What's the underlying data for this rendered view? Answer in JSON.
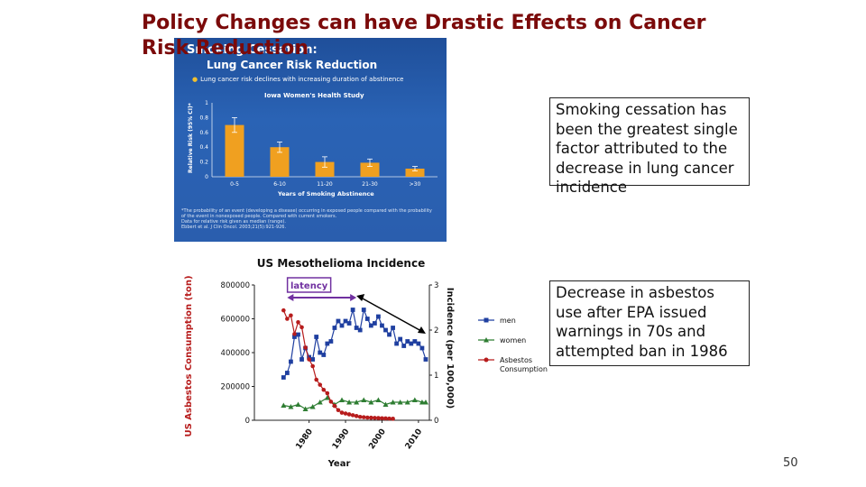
{
  "slide": {
    "title": "Policy Changes can have Drastic Effects on Cancer Risk Reduction",
    "callout1": "Smoking cessation has been the greatest single factor attributed to the decrease in lung cancer incidence",
    "callout2": "Decrease in asbestos use after EPA issued warnings in 70s and attempted ban in 1986",
    "page_number": "50"
  },
  "figure1": {
    "heading1": "Smoking Cessation:",
    "heading2": "Lung Cancer Risk Reduction",
    "bullet": "Lung cancer risk declines with increasing duration of abstinence",
    "bg_color": "#2a5eae",
    "bar_color": "#f0a020",
    "footnote": [
      "*The probability of an event (developing a disease) occurring in exposed people compared with the probability",
      "of the event in nonexposed people. Compared with current smokers.",
      "Data for relative risk given as median (range).",
      "Ebbert et al. J Clin Oncol. 2003;21(5):921-926."
    ],
    "chart_data": {
      "type": "bar",
      "title": "Iowa Women's Health Study",
      "xlabel": "Years of Smoking Abstinence",
      "ylabel": "Relative Risk (95% CI)*",
      "categories": [
        "0-5",
        "6-10",
        "11-20",
        "21-30",
        ">30"
      ],
      "values": [
        0.7,
        0.4,
        0.2,
        0.19,
        0.11
      ],
      "errors": [
        0.1,
        0.07,
        0.07,
        0.05,
        0.03
      ],
      "ylim": [
        0,
        1
      ],
      "yticks": [
        "0",
        "0.2",
        "0.4",
        "0.6",
        "0.8",
        "1"
      ]
    }
  },
  "figure2": {
    "latency_label": "latency",
    "latency_color": "#7030a0",
    "chart_data": {
      "type": "line",
      "title": "US Mesothelioma Incidence",
      "xlabel": "Year",
      "ylabel_left": "US Asbestos Consumption (ton)",
      "ylabel_right": "Incidence (per 100,000)",
      "xlim": [
        1965,
        2013
      ],
      "xticks": [
        "1980",
        "1990",
        "2000",
        "2010"
      ],
      "ylim_left": [
        0,
        800000
      ],
      "yticks_left": [
        "0",
        "200000",
        "400000",
        "600000",
        "800000"
      ],
      "ylim_right": [
        0,
        3
      ],
      "yticks_right": [
        "0",
        "1",
        "2",
        "3"
      ],
      "series": [
        {
          "name": "men",
          "axis": "right",
          "color": "#1f3fa0",
          "marker": "square",
          "x": [
            1973,
            1974,
            1975,
            1976,
            1977,
            1978,
            1979,
            1980,
            1981,
            1982,
            1983,
            1984,
            1985,
            1986,
            1987,
            1988,
            1989,
            1990,
            1991,
            1992,
            1993,
            1994,
            1995,
            1996,
            1997,
            1998,
            1999,
            2000,
            2001,
            2002,
            2003,
            2004,
            2005,
            2006,
            2007,
            2008,
            2009,
            2010,
            2011,
            2012
          ],
          "y": [
            0.95,
            1.05,
            1.3,
            1.85,
            1.9,
            1.35,
            1.6,
            1.4,
            1.35,
            1.85,
            1.5,
            1.45,
            1.7,
            1.75,
            2.05,
            2.2,
            2.1,
            2.2,
            2.15,
            2.45,
            2.05,
            2.0,
            2.45,
            2.25,
            2.1,
            2.15,
            2.3,
            2.1,
            2.0,
            1.9,
            2.05,
            1.7,
            1.8,
            1.65,
            1.75,
            1.7,
            1.75,
            1.7,
            1.6,
            1.35
          ]
        },
        {
          "name": "women",
          "axis": "right",
          "color": "#2e7d32",
          "marker": "triangle",
          "x": [
            1973,
            1975,
            1977,
            1979,
            1981,
            1983,
            1985,
            1987,
            1989,
            1991,
            1993,
            1995,
            1997,
            1999,
            2001,
            2003,
            2005,
            2007,
            2009,
            2011,
            2012
          ],
          "y": [
            0.33,
            0.3,
            0.35,
            0.25,
            0.3,
            0.4,
            0.5,
            0.35,
            0.45,
            0.4,
            0.4,
            0.45,
            0.4,
            0.45,
            0.35,
            0.4,
            0.4,
            0.4,
            0.45,
            0.4,
            0.4
          ]
        },
        {
          "name": "Asbestos Consumption",
          "axis": "left",
          "color": "#b71c1c",
          "marker": "circle",
          "x": [
            1973,
            1974,
            1975,
            1976,
            1977,
            1978,
            1979,
            1980,
            1981,
            1982,
            1983,
            1984,
            1985,
            1986,
            1987,
            1988,
            1989,
            1990,
            1991,
            1992,
            1993,
            1994,
            1995,
            1996,
            1997,
            1998,
            1999,
            2000,
            2001,
            2002,
            2003
          ],
          "y": [
            650000,
            600000,
            620000,
            510000,
            580000,
            550000,
            430000,
            360000,
            320000,
            240000,
            210000,
            180000,
            160000,
            110000,
            85000,
            60000,
            45000,
            40000,
            35000,
            30000,
            25000,
            20000,
            18000,
            16000,
            15000,
            14000,
            13000,
            12000,
            11000,
            10000,
            9000
          ]
        }
      ]
    }
  }
}
